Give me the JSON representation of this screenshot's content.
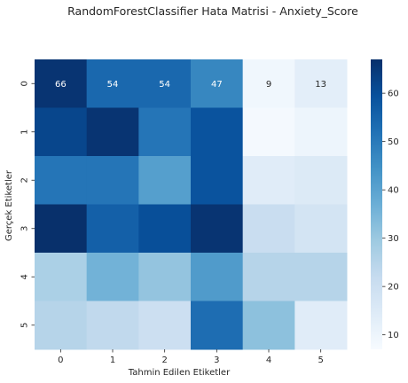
{
  "chart_data": {
    "type": "heatmap",
    "title": "RandomForestClassifier Hata Matrisi - Anxiety_Score",
    "xlabel": "Tahmin Edilen Etiketler",
    "ylabel": "Gerçek Etiketler",
    "x_ticks": [
      "0",
      "1",
      "2",
      "3",
      "4",
      "5"
    ],
    "y_ticks": [
      "0",
      "1",
      "2",
      "3",
      "4",
      "5"
    ],
    "colormap": "Blues",
    "vmin": 7,
    "vmax": 67,
    "colorbar_ticks": [
      10,
      20,
      30,
      40,
      50,
      60
    ],
    "matrix": [
      [
        66,
        54,
        54,
        47,
        9,
        13
      ],
      [
        62,
        66,
        51,
        59,
        8,
        10
      ],
      [
        51,
        51,
        41,
        59,
        14,
        15
      ],
      [
        67,
        56,
        60,
        66,
        21,
        18
      ],
      [
        27,
        36,
        31,
        42,
        25,
        25
      ],
      [
        25,
        23,
        20,
        53,
        32,
        14
      ]
    ],
    "annotated_rows": [
      0
    ]
  }
}
